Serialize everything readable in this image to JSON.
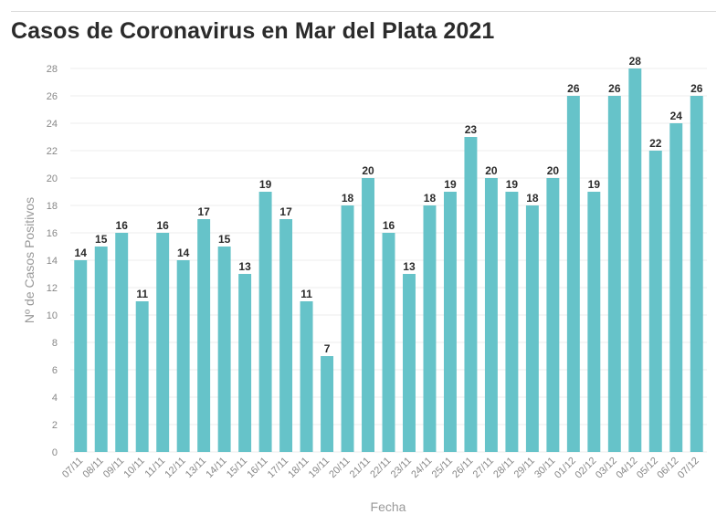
{
  "title": "Casos de Coronavirus en Mar del Plata 2021",
  "chart_data": {
    "type": "bar",
    "title": "Casos de Coronavirus en Mar del Plata 2021",
    "xlabel": "Fecha",
    "ylabel": "Nº de Casos Positivos",
    "ylim": [
      0,
      28
    ],
    "yticks": [
      0,
      2,
      4,
      6,
      8,
      10,
      12,
      14,
      16,
      18,
      20,
      22,
      24,
      26,
      28
    ],
    "grid": true,
    "bar_color": "#66c3c9",
    "categories": [
      "07/11",
      "08/11",
      "09/11",
      "10/11",
      "11/11",
      "12/11",
      "13/11",
      "14/11",
      "15/11",
      "16/11",
      "17/11",
      "18/11",
      "19/11",
      "20/11",
      "21/11",
      "22/11",
      "23/11",
      "24/11",
      "25/11",
      "26/11",
      "27/11",
      "28/11",
      "29/11",
      "30/11",
      "01/12",
      "02/12",
      "03/12",
      "04/12",
      "05/12",
      "06/12",
      "07/12"
    ],
    "values": [
      14,
      15,
      16,
      11,
      16,
      14,
      17,
      15,
      13,
      19,
      17,
      11,
      7,
      18,
      20,
      16,
      13,
      18,
      19,
      23,
      20,
      19,
      18,
      20,
      26,
      19,
      26,
      28,
      22,
      24,
      26
    ]
  }
}
